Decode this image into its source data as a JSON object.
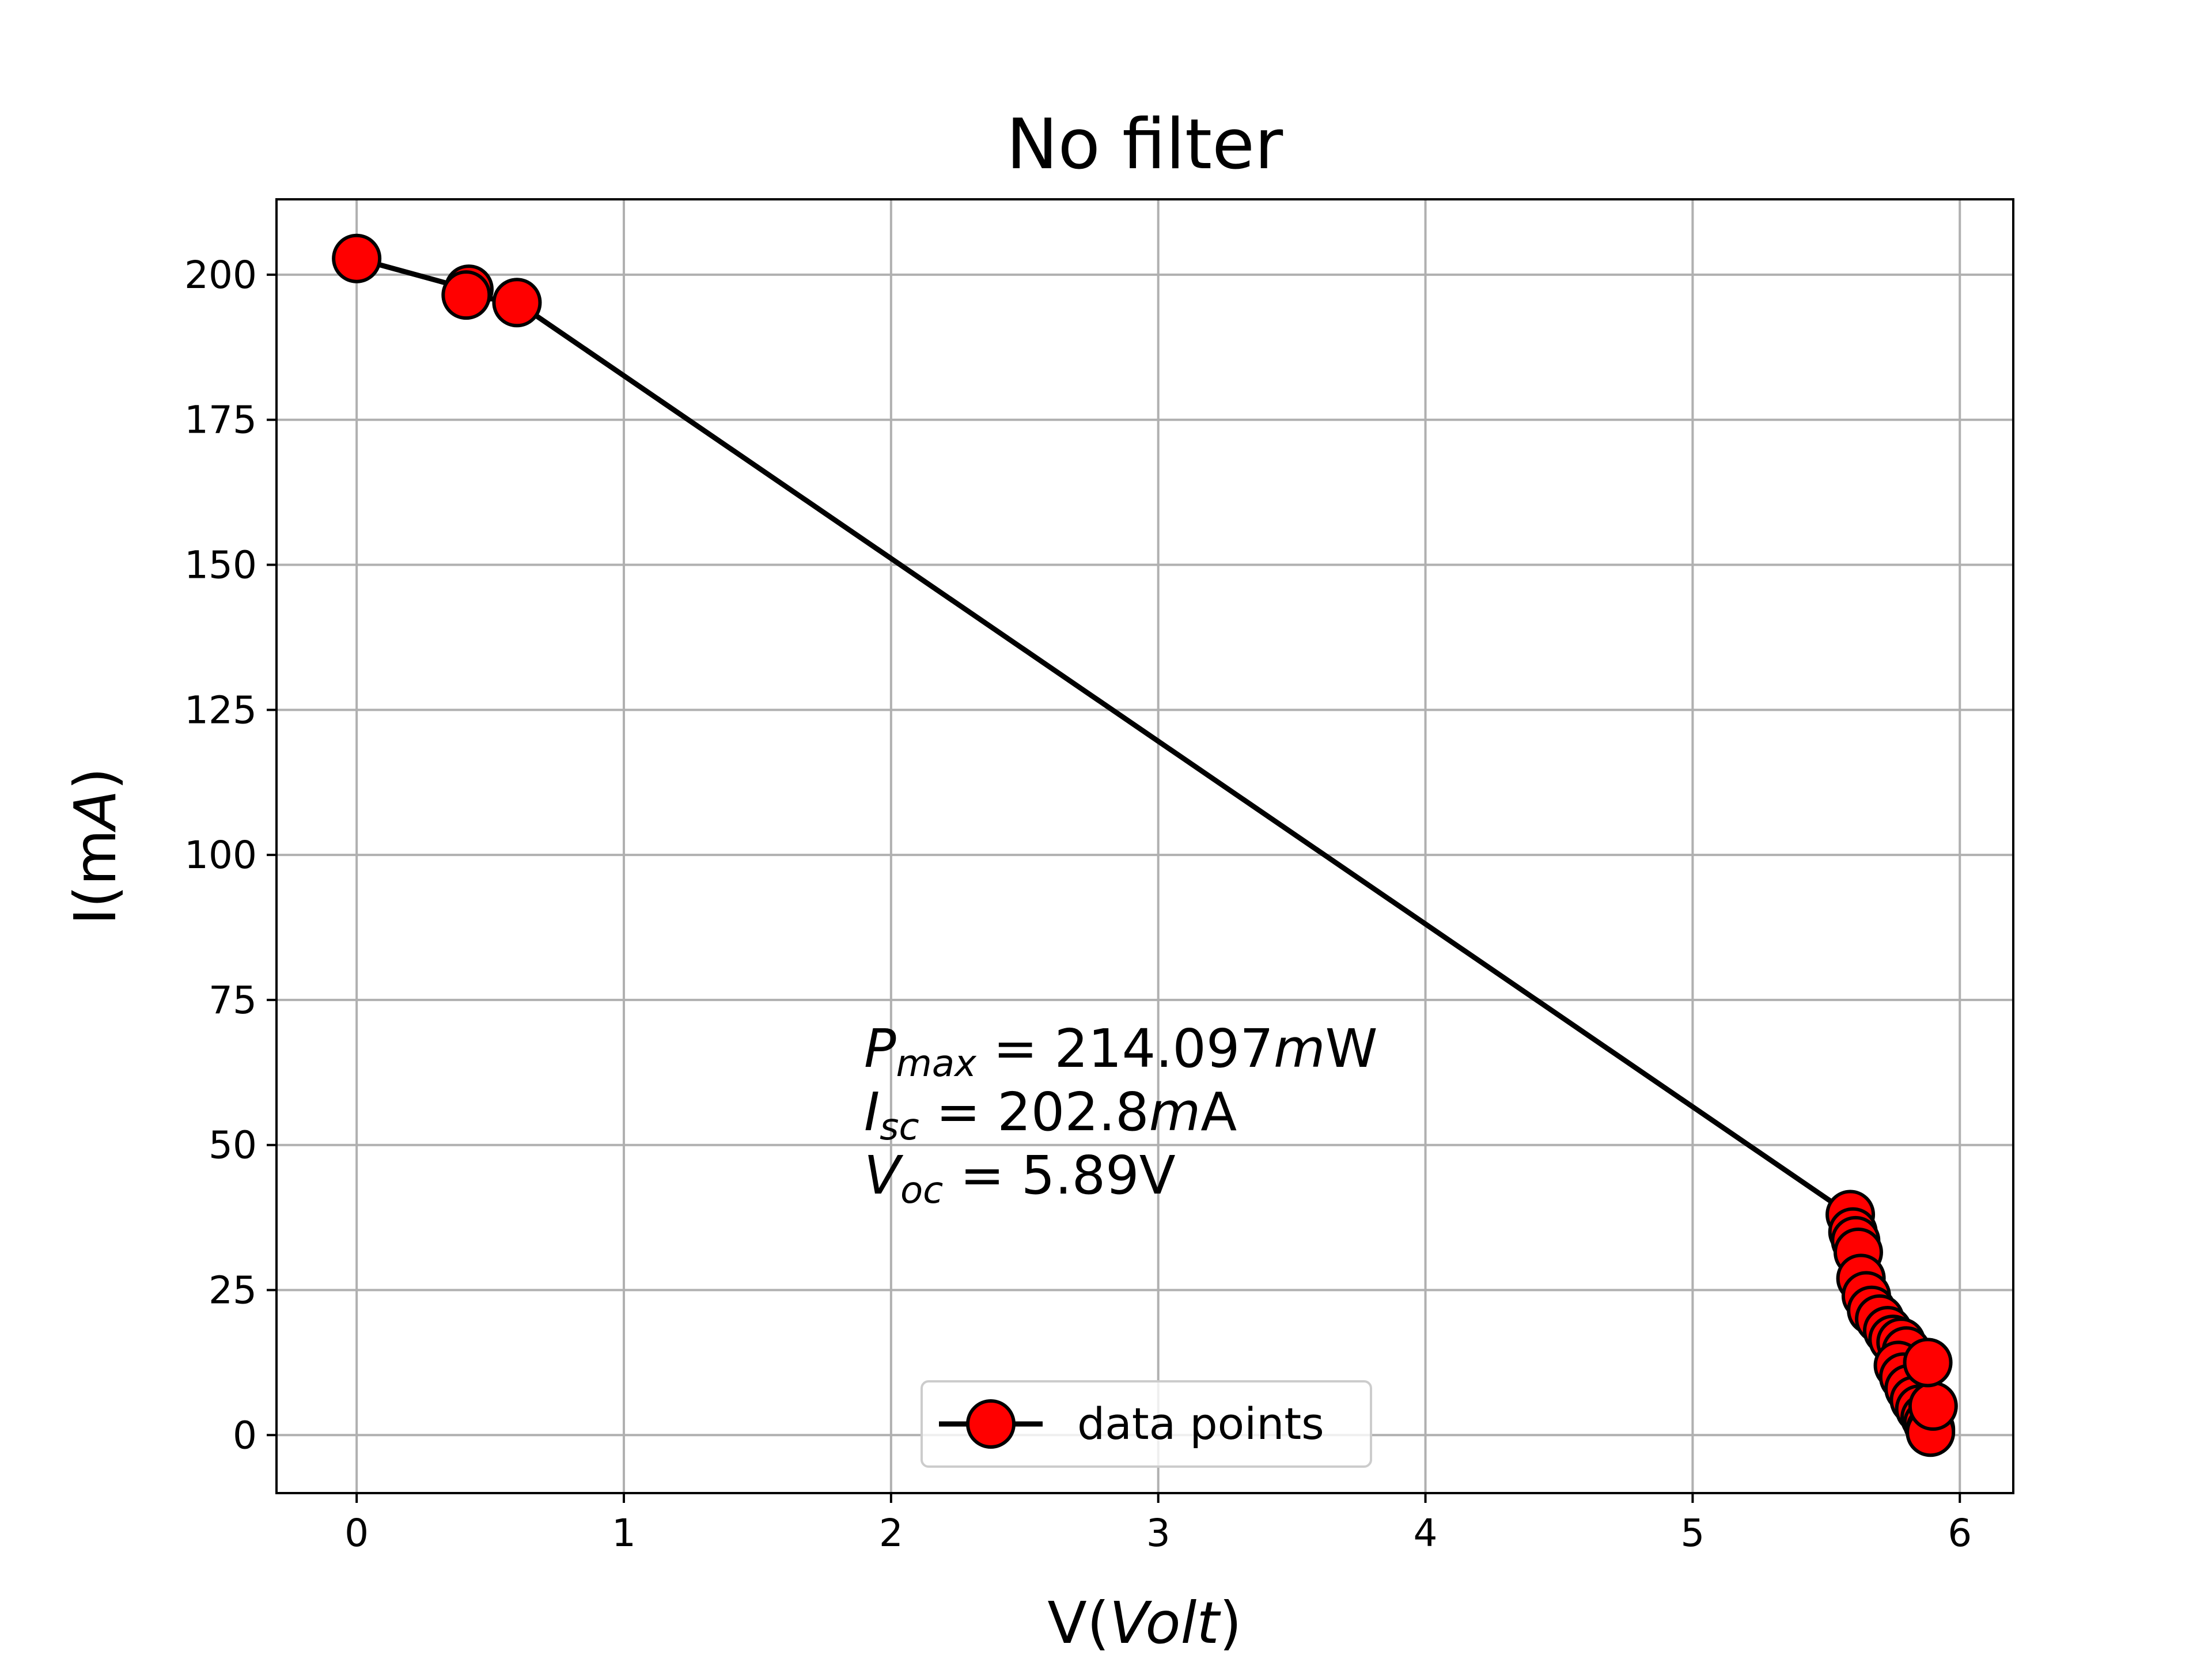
{
  "chart_data": {
    "type": "line",
    "title": "No filter",
    "xlabel": {
      "prefix": "V(",
      "italic": "Volt",
      "suffix": ")"
    },
    "ylabel": {
      "prefix": "I(m",
      "italic": "A",
      "suffix": ")"
    },
    "xlim": [
      -0.3,
      6.2
    ],
    "ylim": [
      -10,
      213
    ],
    "xticks": [
      0,
      1,
      2,
      3,
      4,
      5,
      6
    ],
    "yticks": [
      0,
      25,
      50,
      75,
      100,
      125,
      150,
      175,
      200
    ],
    "grid": true,
    "legend": {
      "position": "lower center",
      "entries": [
        "data points"
      ]
    },
    "series": [
      {
        "name": "data points",
        "line_color": "#000000",
        "marker_face": "#ff0000",
        "marker_edge": "#000000",
        "x": [
          0.0,
          0.42,
          0.41,
          0.6,
          5.59,
          5.6,
          5.61,
          5.62,
          5.63,
          5.65,
          5.67,
          5.7,
          5.73,
          5.75,
          5.78,
          5.8,
          5.77,
          5.79,
          5.81,
          5.83,
          5.85,
          5.87,
          5.88,
          5.89,
          5.89,
          5.9,
          5.88
        ],
        "y": [
          202.8,
          197.5,
          196.5,
          195.2,
          38.0,
          35.0,
          33.5,
          31.5,
          27.0,
          24.0,
          21.5,
          20.0,
          18.0,
          16.5,
          16.0,
          14.5,
          12.0,
          10.0,
          8.0,
          6.0,
          4.5,
          3.0,
          2.0,
          1.0,
          0.5,
          5.0,
          12.5
        ]
      }
    ],
    "annotations": [
      {
        "main": "P",
        "sub": "max",
        "text": " = 214.097",
        "unit_italic": "m",
        "unit": "W"
      },
      {
        "main": "I",
        "sub": "sc",
        "text": " = 202.8",
        "unit_italic": "m",
        "unit": "A"
      },
      {
        "main": "V",
        "sub": "oc",
        "text": " = 5.89V",
        "unit_italic": "",
        "unit": ""
      }
    ]
  }
}
